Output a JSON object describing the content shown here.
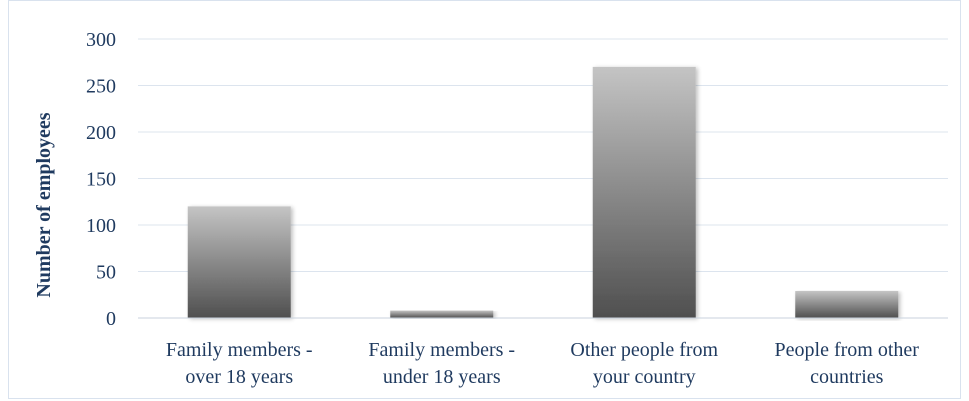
{
  "chart_data": {
    "type": "bar",
    "title": "",
    "xlabel": "",
    "ylabel": "Number of employees",
    "ylim": [
      0,
      300
    ],
    "yticks": [
      0,
      50,
      100,
      150,
      200,
      250,
      300
    ],
    "grid": true,
    "legend": "none",
    "categories": [
      [
        "Family members -",
        "over 18 years"
      ],
      [
        "Family members -",
        "under 18 years"
      ],
      [
        "Other people from",
        "your country"
      ],
      [
        "People from other",
        "countries"
      ]
    ],
    "values": [
      120,
      8,
      270,
      29
    ],
    "colors": {
      "bar_light": "#c4c4c4",
      "bar_dark": "#4f4f4f",
      "gridline": "#dce4ee",
      "axis_line": "#c8d2de",
      "text": "#1f3a5f"
    }
  }
}
